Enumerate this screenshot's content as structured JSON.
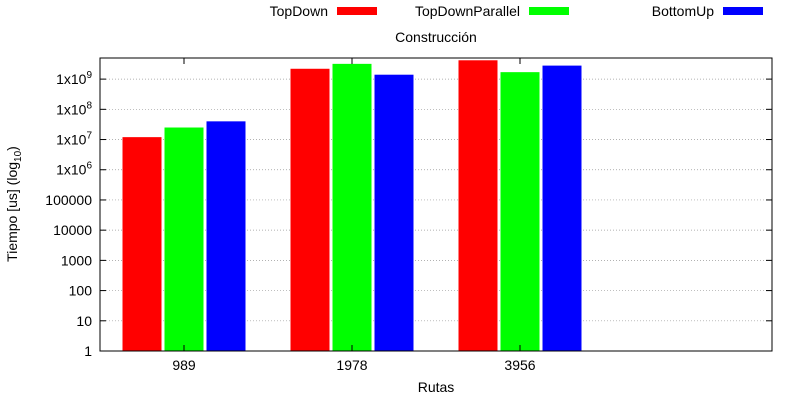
{
  "chart_data": {
    "type": "bar",
    "title": "Construcción",
    "xlabel": "Rutas",
    "ylabel_text": "Tiempo [us] (log",
    "ylabel_sub": "10",
    "ylabel_close": ")",
    "yscale": "log10",
    "ylim": [
      1,
      5000000000
    ],
    "yticks": [
      {
        "value": 1,
        "base": "1",
        "exp": ""
      },
      {
        "value": 10,
        "base": "10",
        "exp": ""
      },
      {
        "value": 100,
        "base": "100",
        "exp": ""
      },
      {
        "value": 1000,
        "base": "1000",
        "exp": ""
      },
      {
        "value": 10000,
        "base": "10000",
        "exp": ""
      },
      {
        "value": 100000,
        "base": "100000",
        "exp": ""
      },
      {
        "value": 1000000,
        "base": "1x10",
        "exp": "6"
      },
      {
        "value": 10000000,
        "base": "1x10",
        "exp": "7"
      },
      {
        "value": 100000000,
        "base": "1x10",
        "exp": "8"
      },
      {
        "value": 1000000000,
        "base": "1x10",
        "exp": "9"
      }
    ],
    "categories": [
      "989",
      "1978",
      "3956"
    ],
    "series": [
      {
        "name": "TopDown",
        "color": "#ff0000",
        "values": [
          12000000,
          2200000000,
          4200000000
        ]
      },
      {
        "name": "TopDownParallel",
        "color": "#00ff00",
        "values": [
          25000000,
          3200000000,
          1700000000
        ]
      },
      {
        "name": "BottomUp",
        "color": "#0000ff",
        "values": [
          40000000,
          1400000000,
          2800000000
        ]
      }
    ],
    "grid": true,
    "legend_position": "top"
  }
}
